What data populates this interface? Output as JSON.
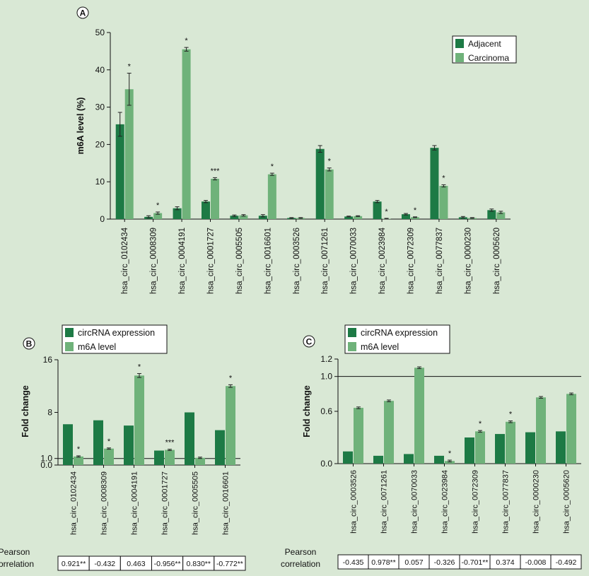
{
  "colors": {
    "background": "#d9e8d5",
    "adjacent": "#1d7a45",
    "carcinoma": "#6fb27a"
  },
  "chart_data": [
    {
      "panel": "A",
      "type": "bar",
      "ylabel": "m6A level (%)",
      "ylim": [
        0,
        50
      ],
      "yticks": [
        0,
        10,
        20,
        30,
        40,
        50
      ],
      "legend_position": "top-right",
      "categories": [
        "hsa_circ_0102434",
        "hsa_circ_0008309",
        "hsa_circ_0004191",
        "hsa_circ_0001727",
        "hsa_circ_0005505",
        "hsa_circ_0016601",
        "hsa_circ_0003526",
        "hsa_circ_0071261",
        "hsa_circ_0070033",
        "hsa_circ_0023984",
        "hsa_circ_0072309",
        "hsa_circ_0077837",
        "hsa_circ_0000230",
        "hsa_circ_0005620"
      ],
      "series": [
        {
          "name": "Adjacent",
          "values": [
            25.4,
            0.6,
            2.9,
            4.7,
            0.9,
            0.9,
            0.3,
            18.8,
            0.7,
            4.7,
            1.3,
            19.1,
            0.5,
            2.4
          ],
          "errors": [
            3.2,
            0.3,
            0.4,
            0.3,
            0.2,
            0.3,
            0.1,
            0.9,
            0.1,
            0.3,
            0.2,
            0.6,
            0.2,
            0.3
          ]
        },
        {
          "name": "Carcinoma",
          "values": [
            34.8,
            1.6,
            45.5,
            10.8,
            1.0,
            12.0,
            0.3,
            13.3,
            0.8,
            0.1,
            0.5,
            8.9,
            0.3,
            1.8
          ],
          "errors": [
            4.3,
            0.3,
            0.5,
            0.3,
            0.2,
            0.3,
            0.1,
            0.4,
            0.1,
            0.1,
            0.1,
            0.3,
            0.1,
            0.3
          ]
        }
      ],
      "significance": [
        "*",
        "*",
        "*",
        "***",
        "",
        "*",
        "",
        "*",
        "",
        "*",
        "*",
        "*",
        "",
        ""
      ]
    },
    {
      "panel": "B",
      "type": "bar",
      "ylabel": "Fold change",
      "ylim": [
        0,
        16
      ],
      "yticks": [
        0.0,
        1.0,
        8,
        16
      ],
      "ytick_labels": [
        "0.0",
        "1.0",
        "8",
        "16"
      ],
      "reference_line": 1.0,
      "legend_position": "top-left",
      "categories": [
        "hsa_circ_0102434",
        "hsa_circ_0008309",
        "hsa_circ_0004191",
        "hsa_circ_0001727",
        "hsa_circ_0005505",
        "hsa_circ_0016601"
      ],
      "series": [
        {
          "name": "circRNA expression",
          "values": [
            6.2,
            6.8,
            6.0,
            2.2,
            8.0,
            5.3
          ],
          "errors": [
            0,
            0,
            0,
            0,
            0,
            0
          ]
        },
        {
          "name": "m6A level",
          "values": [
            1.3,
            2.5,
            13.6,
            2.3,
            1.1,
            12.0
          ],
          "errors": [
            0.1,
            0.1,
            0.3,
            0.1,
            0.1,
            0.2
          ]
        }
      ],
      "significance": [
        "*",
        "*",
        "*",
        "***",
        "",
        "*"
      ],
      "pearson_label_1": "Pearson",
      "pearson_label_2": "correlation",
      "pearson": [
        "0.921**",
        "-0.432",
        "0.463",
        "-0.956**",
        "0.830**",
        "-0.772**"
      ]
    },
    {
      "panel": "C",
      "type": "bar",
      "ylabel": "Fold change",
      "ylim": [
        0,
        1.2
      ],
      "yticks": [
        0.0,
        0.6,
        1.0,
        1.2
      ],
      "ytick_labels": [
        "0.0",
        "0.6",
        "1.0",
        "1.2"
      ],
      "reference_line": 1.0,
      "legend_position": "top-left",
      "categories": [
        "hsa_circ_0003526",
        "hsa_circ_0071261",
        "hsa_circ_0070033",
        "hsa_circ_0023984",
        "hsa_circ_0072309",
        "hsa_circ_0077837",
        "hsa_circ_0000230",
        "hsa_circ_0005620"
      ],
      "series": [
        {
          "name": "circRNA expression",
          "values": [
            0.14,
            0.09,
            0.11,
            0.09,
            0.3,
            0.34,
            0.36,
            0.37
          ],
          "errors": [
            0,
            0,
            0,
            0,
            0,
            0,
            0,
            0
          ]
        },
        {
          "name": "m6A level",
          "values": [
            0.64,
            0.72,
            1.1,
            0.03,
            0.37,
            0.48,
            0.76,
            0.8
          ],
          "errors": [
            0.01,
            0.01,
            0.01,
            0.01,
            0.01,
            0.01,
            0.01,
            0.01
          ]
        }
      ],
      "significance": [
        "",
        "",
        "",
        "*",
        "*",
        "*",
        "",
        ""
      ],
      "pearson_label_1": "Pearson",
      "pearson_label_2": "correlation",
      "pearson": [
        "-0.435",
        "0.978**",
        "0.057",
        "-0.326",
        "-0.701**",
        "0.374",
        "-0.008",
        "-0.492"
      ]
    }
  ]
}
